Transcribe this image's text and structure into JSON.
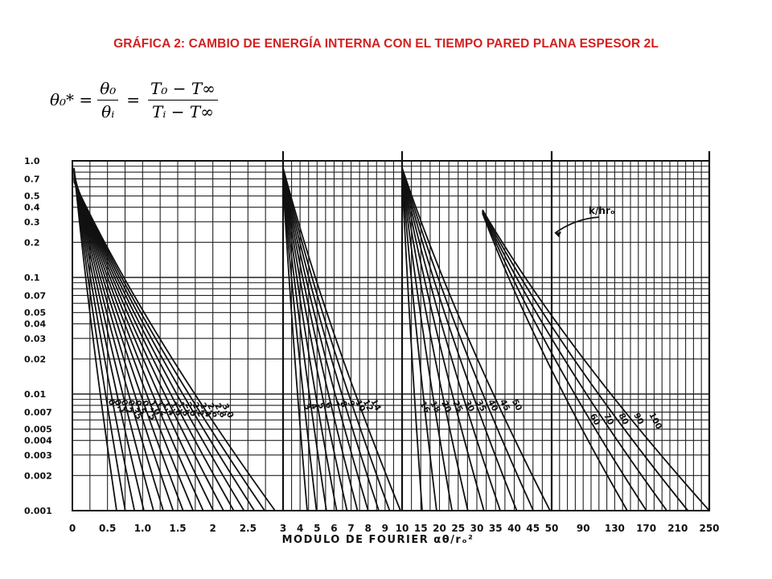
{
  "header": {
    "title": "GRÁFICA 2: CAMBIO DE ENERGÍA INTERNA CON EL TIEMPO PARED PLANA ESPESOR 2L"
  },
  "formula": {
    "lhs": "θ₀* =",
    "f1_num": "θ₀",
    "f1_den": "θᵢ",
    "eq2": "=",
    "f2_num": "T₀ − T∞",
    "f2_den": "Tᵢ − T∞"
  },
  "chart_data": {
    "type": "line",
    "xlabel": "MODULO DE FOURIER αθ/rₒ²",
    "ylog": true,
    "ylim": [
      0.001,
      1.0
    ],
    "y_ticks": [
      {
        "v": 1.0,
        "label": "1.0"
      },
      {
        "v": 0.7,
        "label": "0.7"
      },
      {
        "v": 0.5,
        "label": "0.5"
      },
      {
        "v": 0.4,
        "label": "0.4"
      },
      {
        "v": 0.3,
        "label": "0.3"
      },
      {
        "v": 0.2,
        "label": "0.2"
      },
      {
        "v": 0.1,
        "label": "0.1"
      },
      {
        "v": 0.07,
        "label": "0.07"
      },
      {
        "v": 0.05,
        "label": "0.05"
      },
      {
        "v": 0.04,
        "label": "0.04"
      },
      {
        "v": 0.03,
        "label": "0.03"
      },
      {
        "v": 0.02,
        "label": "0.02"
      },
      {
        "v": 0.01,
        "label": "0.01"
      },
      {
        "v": 0.007,
        "label": "0.007"
      },
      {
        "v": 0.005,
        "label": "0.005"
      },
      {
        "v": 0.004,
        "label": "0.004"
      },
      {
        "v": 0.003,
        "label": "0.003"
      },
      {
        "v": 0.002,
        "label": "0.002"
      },
      {
        "v": 0.001,
        "label": "0.001"
      }
    ],
    "panels": [
      {
        "x_range": [
          0,
          3
        ],
        "ticks": [
          "0",
          "0.5",
          "1.0",
          "1.5",
          "2",
          "2.5",
          "3"
        ],
        "tick_values": [
          0,
          0.5,
          1,
          1.5,
          2,
          2.5,
          3
        ]
      },
      {
        "x_range": [
          3,
          10
        ],
        "ticks": [
          "4",
          "5",
          "6",
          "7",
          "8",
          "9",
          "10"
        ],
        "tick_values": [
          4,
          5,
          6,
          7,
          8,
          9,
          10
        ]
      },
      {
        "x_range": [
          10,
          50
        ],
        "ticks": [
          "15",
          "20",
          "25",
          "30",
          "35",
          "40",
          "45",
          "50"
        ],
        "tick_values": [
          15,
          20,
          25,
          30,
          35,
          40,
          45,
          50
        ]
      },
      {
        "x_range": [
          50,
          250
        ],
        "ticks": [
          "90",
          "130",
          "170",
          "210",
          "250"
        ],
        "tick_values": [
          90,
          130,
          170,
          210,
          250
        ]
      }
    ],
    "parameter_label": "k/hrₒ",
    "curves_panel1": [
      {
        "k": "0",
        "label": "0"
      },
      {
        "k": "0.1",
        "label": "0.1"
      },
      {
        "k": "0.2",
        "label": "0.2"
      },
      {
        "k": "0.35",
        "label": "0.35"
      },
      {
        "k": "0.5",
        "label": "0.5"
      },
      {
        "k": "0.75",
        "label": "0.75"
      },
      {
        "k": "1.0",
        "label": "1.0"
      },
      {
        "k": "1.2",
        "label": "1.2"
      },
      {
        "k": "1.4",
        "label": "1.4"
      },
      {
        "k": "1.6",
        "label": "1.6"
      },
      {
        "k": "1.8",
        "label": "1.8"
      },
      {
        "k": "2.0",
        "label": "2.0"
      },
      {
        "k": "2.2",
        "label": "2.2"
      },
      {
        "k": "2.4",
        "label": "2.4"
      },
      {
        "k": "2.6",
        "label": "2.6"
      },
      {
        "k": "2.8",
        "label": "2.8"
      },
      {
        "k": "3.0",
        "label": "3.0"
      }
    ],
    "curves_panel2": [
      {
        "k": "3",
        "label": "3"
      },
      {
        "k": "4",
        "label": "4"
      },
      {
        "k": "5",
        "label": "5"
      },
      {
        "k": "6",
        "label": "6"
      },
      {
        "k": "7",
        "label": "7"
      },
      {
        "k": "8",
        "label": "8"
      },
      {
        "k": "9",
        "label": "9"
      },
      {
        "k": "10",
        "label": "10"
      },
      {
        "k": "12",
        "label": "12"
      },
      {
        "k": "14",
        "label": "14"
      }
    ],
    "curves_panel3": [
      {
        "k": "16",
        "label": "16"
      },
      {
        "k": "18",
        "label": "18"
      },
      {
        "k": "20",
        "label": "20"
      },
      {
        "k": "25",
        "label": "25"
      },
      {
        "k": "30",
        "label": "30"
      },
      {
        "k": "35",
        "label": "35"
      },
      {
        "k": "40",
        "label": "40"
      },
      {
        "k": "45",
        "label": "45"
      },
      {
        "k": "50",
        "label": "50"
      }
    ],
    "curves_panel4": [
      {
        "k": "60",
        "label": "60"
      },
      {
        "k": "70",
        "label": "70"
      },
      {
        "k": "80",
        "label": "80"
      },
      {
        "k": "90",
        "label": "90"
      },
      {
        "k": "100",
        "label": "100"
      }
    ]
  }
}
